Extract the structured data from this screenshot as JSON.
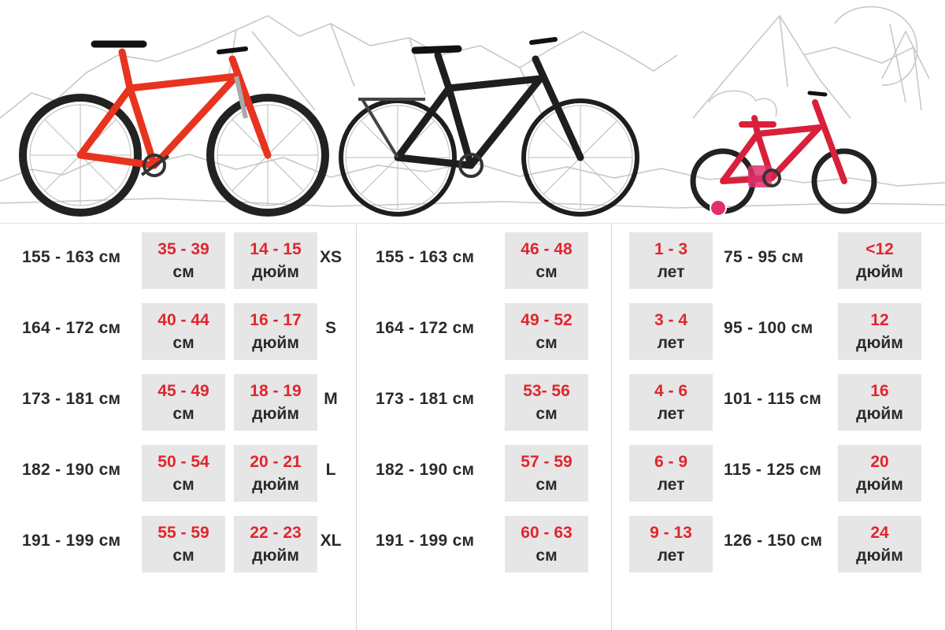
{
  "colors": {
    "accent_red": "#e0262e",
    "text_dark": "#2a2a2a",
    "box_gray": "#e6e6e6",
    "sketch": "#c8c8c8",
    "mtb_frame": "#e8331f",
    "city_frame": "#1e1e1e",
    "kid_frame": "#d8203a"
  },
  "images": [
    "mountain-bike-icon",
    "city-bike-icon",
    "kids-bike-icon",
    "mountain-sketch-icon"
  ],
  "mountain": [
    {
      "height": "155 - 163 см",
      "frame_cm": "35 - 39",
      "cm_unit": "см",
      "frame_in": "14 - 15",
      "in_unit": "дюйм",
      "size": "XS"
    },
    {
      "height": "164 - 172 см",
      "frame_cm": "40 - 44",
      "cm_unit": "см",
      "frame_in": "16 - 17",
      "in_unit": "дюйм",
      "size": "S"
    },
    {
      "height": "173 - 181 см",
      "frame_cm": "45 - 49",
      "cm_unit": "см",
      "frame_in": "18 - 19",
      "in_unit": "дюйм",
      "size": "M"
    },
    {
      "height": "182 - 190 см",
      "frame_cm": "50 - 54",
      "cm_unit": "см",
      "frame_in": "20 - 21",
      "in_unit": "дюйм",
      "size": "L"
    },
    {
      "height": "191 - 199 см",
      "frame_cm": "55 - 59",
      "cm_unit": "см",
      "frame_in": "22 - 23",
      "in_unit": "дюйм",
      "size": "XL"
    }
  ],
  "city": [
    {
      "height": "155 - 163 см",
      "frame_cm": "46 - 48",
      "cm_unit": "см"
    },
    {
      "height": "164 - 172 см",
      "frame_cm": "49 - 52",
      "cm_unit": "см"
    },
    {
      "height": "173 - 181 см",
      "frame_cm": "53- 56",
      "cm_unit": "см"
    },
    {
      "height": "182 - 190 см",
      "frame_cm": "57 - 59",
      "cm_unit": "см"
    },
    {
      "height": "191 - 199 см",
      "frame_cm": "60 - 63",
      "cm_unit": "см"
    }
  ],
  "kids": [
    {
      "age": "1 - 3",
      "age_unit": "лет",
      "height": "75 - 95 см",
      "wheel": "<12",
      "wheel_unit": "дюйм"
    },
    {
      "age": "3 - 4",
      "age_unit": "лет",
      "height": "95 - 100 см",
      "wheel": "12",
      "wheel_unit": "дюйм"
    },
    {
      "age": "4 - 6",
      "age_unit": "лет",
      "height": "101 - 115 см",
      "wheel": "16",
      "wheel_unit": "дюйм"
    },
    {
      "age": "6 - 9",
      "age_unit": "лет",
      "height": "115 - 125 см",
      "wheel": "20",
      "wheel_unit": "дюйм"
    },
    {
      "age": "9 - 13",
      "age_unit": "лет",
      "height": "126 - 150 см",
      "wheel": "24",
      "wheel_unit": "дюйм"
    }
  ]
}
